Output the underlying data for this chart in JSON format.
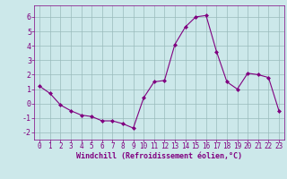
{
  "x": [
    0,
    1,
    2,
    3,
    4,
    5,
    6,
    7,
    8,
    9,
    10,
    11,
    12,
    13,
    14,
    15,
    16,
    17,
    18,
    19,
    20,
    21,
    22,
    23
  ],
  "y": [
    1.2,
    0.7,
    -0.1,
    -0.5,
    -0.8,
    -0.9,
    -1.2,
    -1.2,
    -1.4,
    -1.7,
    0.4,
    1.5,
    1.6,
    4.1,
    5.3,
    6.0,
    6.1,
    3.6,
    1.5,
    1.0,
    2.1,
    2.0,
    1.8,
    -0.5
  ],
  "xlim": [
    -0.5,
    23.5
  ],
  "ylim": [
    -2.5,
    6.8
  ],
  "yticks": [
    -2,
    -1,
    0,
    1,
    2,
    3,
    4,
    5,
    6
  ],
  "xticks": [
    0,
    1,
    2,
    3,
    4,
    5,
    6,
    7,
    8,
    9,
    10,
    11,
    12,
    13,
    14,
    15,
    16,
    17,
    18,
    19,
    20,
    21,
    22,
    23
  ],
  "xlabel": "Windchill (Refroidissement éolien,°C)",
  "line_color": "#800080",
  "marker": "D",
  "marker_size": 2.0,
  "bg_color": "#cce8ea",
  "grid_color": "#99bbbb",
  "axis_color": "#800080",
  "tick_color": "#800080",
  "figsize": [
    3.2,
    2.0
  ],
  "dpi": 100
}
